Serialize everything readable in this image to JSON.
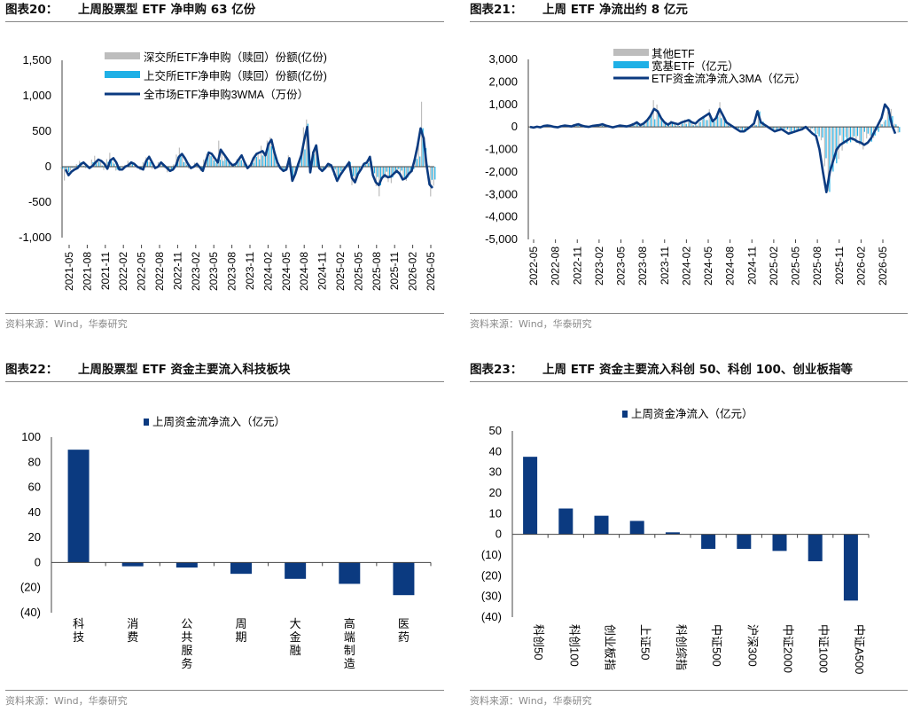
{
  "source_note": "资料来源：Wind，华泰研究",
  "charts": [
    {
      "label": "图表20：",
      "title": "上周股票型 ETF 净申购 63 亿份",
      "legend": [
        "深交所ETF净申购（赎回）份额(亿份)",
        "上交所ETF净申购（赎回）份额(亿份)",
        "全市场ETF净申购3WMA（万份）"
      ],
      "colors": {
        "sz": "#bdbdbd",
        "sh": "#1fb0e6",
        "line": "#0b3a80"
      }
    },
    {
      "label": "图表21：",
      "title": "上周 ETF 净流出约 8 亿元",
      "legend": [
        "其他ETF",
        "宽基ETF（亿元）",
        "ETF资金流净流入3MA（亿元）"
      ],
      "colors": {
        "other": "#bdbdbd",
        "broad": "#1fb0e6",
        "line": "#0b3a80"
      }
    },
    {
      "label": "图表22：",
      "title": "上周股票型 ETF 资金主要流入科技板块",
      "legend": [
        "上周资金流净流入（亿元）"
      ],
      "color": "#0b3a80"
    },
    {
      "label": "图表23：",
      "title": "上周 ETF 资金主要流入科创 50、科创 100、创业板指等",
      "legend": [
        "上周资金净流入（亿元）"
      ],
      "color": "#0b3a80"
    }
  ],
  "chart_data": [
    {
      "type": "bar",
      "title": "上周股票型 ETF 净申购 63 亿份",
      "ylim": [
        -1000,
        1500
      ],
      "yticks": [
        "1,500",
        "1,000",
        "500",
        "0",
        "-500",
        "-1,000"
      ],
      "x_ticks": [
        "2021-05",
        "2021-08",
        "2021-11",
        "2022-02",
        "2022-05",
        "2022-08",
        "2022-11",
        "2023-02",
        "2023-05",
        "2023-08",
        "2023-11",
        "2024-02",
        "2024-05",
        "2024-08",
        "2024-11",
        "2025-02",
        "2025-05",
        "2025-08",
        "2025-11",
        "2026-02",
        "2026-05"
      ],
      "series": [
        {
          "name": "全市场ETF净申购3WMA（万份）",
          "type": "line",
          "values": [
            -40,
            -120,
            -70,
            -40,
            -20,
            30,
            60,
            20,
            -20,
            10,
            60,
            100,
            80,
            40,
            -30,
            90,
            120,
            60,
            -40,
            -40,
            0,
            20,
            60,
            40,
            0,
            -20,
            -40,
            80,
            140,
            60,
            -20,
            0,
            60,
            20,
            -20,
            -60,
            -40,
            20,
            140,
            180,
            120,
            40,
            -20,
            0,
            40,
            -10,
            -60,
            80,
            200,
            180,
            120,
            60,
            240,
            180,
            120,
            60,
            20,
            40,
            100,
            160,
            60,
            -20,
            20,
            120,
            180,
            200,
            220,
            160,
            320,
            380,
            200,
            60,
            -20,
            -60,
            -40,
            120,
            -200,
            -100,
            40,
            160,
            380,
            560,
            -80,
            200,
            300,
            -20,
            -60,
            -20,
            40,
            20,
            -80,
            -200,
            -120,
            -60,
            0,
            60,
            -160,
            -220,
            -100,
            -40,
            40,
            60,
            140,
            -120,
            -220,
            -260,
            -160,
            -120,
            -150,
            -140,
            -100,
            -60,
            -100,
            -180,
            -160,
            -100,
            -60,
            100,
            300,
            540,
            400,
            20,
            -250,
            -300
          ]
        }
      ],
      "bars_note": "深交所 / 上交所 weekly net creation bars plotted alongside the line"
    },
    {
      "type": "bar",
      "title": "上周 ETF 净流出约 8 亿元",
      "ylim": [
        -5000,
        3000
      ],
      "yticks": [
        "3,000",
        "2,000",
        "1,000",
        "0",
        "-1,000",
        "-2,000",
        "-3,000",
        "-4,000",
        "-5,000"
      ],
      "x_ticks": [
        "2022-05",
        "2022-08",
        "2022-11",
        "2023-02",
        "2023-05",
        "2023-08",
        "2023-11",
        "2024-02",
        "2024-05",
        "2024-08",
        "2024-11",
        "2025-02",
        "2025-05",
        "2025-08",
        "2025-11",
        "2026-02",
        "2026-05"
      ],
      "series": [
        {
          "name": "ETF资金流净流入3MA（亿元）",
          "type": "line",
          "values": [
            0,
            -30,
            10,
            -20,
            40,
            60,
            40,
            0,
            -20,
            30,
            60,
            40,
            20,
            80,
            120,
            60,
            20,
            0,
            40,
            60,
            80,
            120,
            60,
            20,
            -20,
            20,
            60,
            40,
            20,
            60,
            120,
            200,
            80,
            160,
            300,
            500,
            800,
            700,
            400,
            200,
            100,
            200,
            160,
            120,
            200,
            250,
            300,
            200,
            150,
            300,
            400,
            500,
            600,
            250,
            400,
            800,
            500,
            200,
            100,
            0,
            -100,
            -200,
            -200,
            -100,
            20,
            150,
            700,
            200,
            100,
            0,
            -100,
            -200,
            -150,
            -100,
            -200,
            -300,
            -250,
            -200,
            -150,
            -100,
            0,
            -150,
            -300,
            -400,
            -1000,
            -2000,
            -2900,
            -2000,
            -1500,
            -1000,
            -800,
            -700,
            -600,
            -500,
            -550,
            -650,
            -700,
            -800,
            -700,
            -500,
            -200,
            100,
            400,
            1000,
            800,
            100,
            -300
          ]
        }
      ]
    },
    {
      "type": "bar",
      "title": "上周股票型 ETF 资金主要流入科技板块",
      "ylim": [
        -40,
        100
      ],
      "yticks": [
        "100",
        "80",
        "60",
        "40",
        "20",
        "0",
        "(20)",
        "(40)"
      ],
      "categories": [
        "科技",
        "消费",
        "公共服务",
        "周期",
        "大金融",
        "高端制造",
        "医药"
      ],
      "values": [
        90,
        -3,
        -4,
        -9,
        -13,
        -17,
        -26
      ],
      "series": [
        {
          "name": "上周资金流净流入（亿元）"
        }
      ]
    },
    {
      "type": "bar",
      "title": "上周 ETF 资金主要流入科创 50、科创 100、创业板指等",
      "ylim": [
        -40,
        50
      ],
      "yticks": [
        "50",
        "40",
        "30",
        "20",
        "10",
        "0",
        "(10)",
        "(20)",
        "(30)",
        "(40)"
      ],
      "categories": [
        "科创50",
        "科创100",
        "创业板指",
        "上证50",
        "科创综指",
        "中证500",
        "沪深300",
        "中证2000",
        "中证1000",
        "中证A500"
      ],
      "values": [
        37.5,
        12.5,
        9,
        6.5,
        1,
        -7,
        -7,
        -8,
        -13,
        -32
      ],
      "series": [
        {
          "name": "上周资金净流入（亿元）"
        }
      ]
    }
  ]
}
